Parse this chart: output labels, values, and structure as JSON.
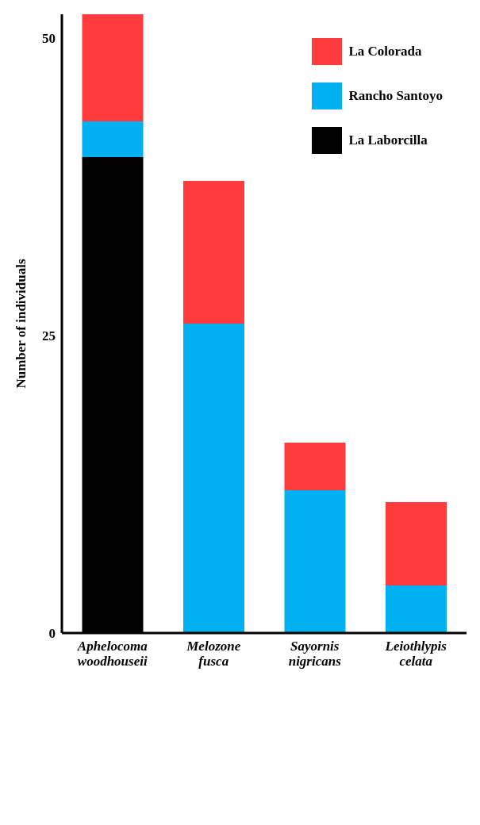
{
  "chart_data": {
    "type": "bar",
    "stacked": true,
    "ylabel": "Number of individuals",
    "categories": [
      "Aphelocoma woodhouseii",
      "Melozone fusca",
      "Sayornis nigricans",
      "Leiothlypis celata"
    ],
    "series": [
      {
        "name": "La Laborcilla",
        "color": "#000000",
        "values": [
          40,
          0,
          0,
          0
        ]
      },
      {
        "name": "Rancho Santoyo",
        "color": "#00b0f0",
        "values": [
          3,
          26,
          12,
          4
        ]
      },
      {
        "name": "La Colorada",
        "color": "#ff3b3b",
        "values": [
          9,
          12,
          4,
          7
        ]
      }
    ],
    "ylim": [
      0,
      52
    ],
    "yticks": [
      0,
      25,
      50
    ],
    "grid": false,
    "legend": "top right"
  }
}
